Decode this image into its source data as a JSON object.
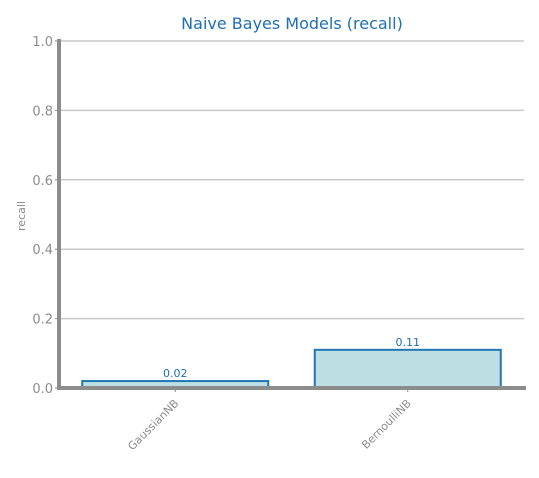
{
  "chart_data": {
    "type": "bar",
    "title": "Naive Bayes Models (recall)",
    "xlabel": "",
    "ylabel": "recall",
    "categories": [
      "GaussianNB",
      "BernoulliNB"
    ],
    "values": [
      0.02,
      0.11
    ],
    "value_labels": [
      "0.02",
      "0.11"
    ],
    "ylim": [
      0,
      1.0
    ],
    "yticks": [
      0.0,
      0.2,
      0.4,
      0.6,
      0.8,
      1.0
    ],
    "ytick_labels": [
      "0.0",
      "0.2",
      "0.4",
      "0.6",
      "0.8",
      "1.0"
    ],
    "grid": "horizontal",
    "legend": "none"
  },
  "colors": {
    "title": "#1f6fb2",
    "bar_fill": "#bddfe3",
    "bar_stroke": "#1f77b4",
    "value_label": "#1f6fb2",
    "axis": "#8c8c8c",
    "grid": "#c8c8c8",
    "tick_text": "#8c8c8c"
  }
}
